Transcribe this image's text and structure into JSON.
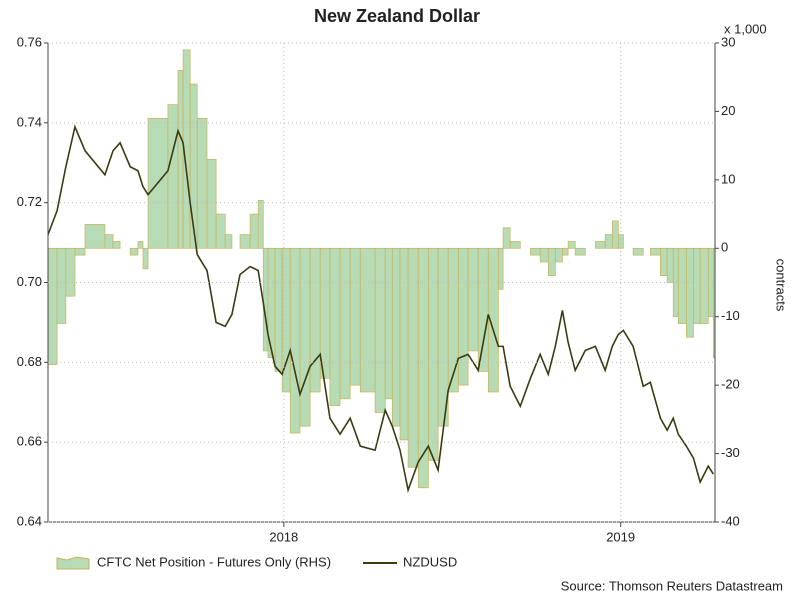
{
  "chart_data": {
    "type": "line",
    "title": "New Zealand Dollar",
    "y2_unit": "x 1,000",
    "y2_label": "contracts",
    "source": "Source: Thomson Reuters Datastream",
    "x": [
      2017.3,
      2017.327,
      2017.353,
      2017.38,
      2017.41,
      2017.469,
      2017.493,
      2017.514,
      2017.544,
      2017.567,
      2017.582,
      2017.597,
      2017.656,
      2017.686,
      2017.701,
      2017.722,
      2017.743,
      2017.772,
      2017.799,
      2017.826,
      2017.846,
      2017.87,
      2017.9,
      2017.924,
      2017.939,
      2017.953,
      2017.974,
      2017.995,
      2018.019,
      2018.048,
      2018.078,
      2018.108,
      2018.137,
      2018.167,
      2018.197,
      2018.227,
      2018.271,
      2018.301,
      2018.322,
      2018.345,
      2018.369,
      2018.399,
      2018.429,
      2018.458,
      2018.488,
      2018.518,
      2018.547,
      2018.577,
      2018.607,
      2018.637,
      2018.651,
      2018.672,
      2018.702,
      2018.732,
      2018.761,
      2018.785,
      2018.806,
      2018.827,
      2018.844,
      2018.865,
      2018.895,
      2018.925,
      2018.954,
      2018.975,
      2018.993,
      2019.008,
      2019.037,
      2019.067,
      2019.088,
      2019.118,
      2019.138,
      2019.156,
      2019.171,
      2019.195,
      2019.216,
      2019.236,
      2019.26,
      2019.275
    ],
    "series": [
      {
        "name": "CFTC Net Position - Futures Only (RHS)",
        "type": "area",
        "axis": "y2",
        "color": "#b7dbb4",
        "edge_color": "#c9b25a",
        "values": [
          -17,
          -11,
          -7,
          -1,
          3.5,
          2,
          1,
          0,
          -1,
          1,
          -3,
          19,
          21,
          26,
          29,
          24,
          19,
          13,
          5,
          2,
          0,
          2,
          5,
          7,
          -15,
          -16,
          -18,
          -21,
          -27,
          -26,
          -21,
          -19,
          -23,
          -22,
          -20,
          -21,
          -24,
          -22,
          -26,
          -28,
          -32,
          -35,
          -31,
          -26,
          -21,
          -20,
          -15,
          -18,
          -21,
          -6,
          3,
          1,
          0,
          -1,
          -2,
          -4,
          -2,
          -1,
          1,
          -1,
          0,
          1,
          2,
          4,
          2,
          0,
          -1,
          0,
          -1,
          -4,
          -5,
          -10,
          -11,
          -13,
          -11,
          -11,
          -10,
          -16
        ]
      },
      {
        "name": "NZDUSD",
        "type": "line",
        "color": "#3b3b12",
        "values": [
          0.712,
          0.718,
          0.729,
          0.739,
          0.733,
          0.727,
          0.733,
          0.735,
          0.729,
          0.728,
          0.724,
          0.722,
          0.728,
          0.738,
          0.735,
          0.72,
          0.707,
          0.703,
          0.69,
          0.689,
          0.692,
          0.702,
          0.704,
          0.703,
          0.695,
          0.687,
          0.679,
          0.677,
          0.683,
          0.672,
          0.679,
          0.682,
          0.666,
          0.662,
          0.666,
          0.659,
          0.658,
          0.668,
          0.664,
          0.658,
          0.648,
          0.655,
          0.659,
          0.653,
          0.673,
          0.681,
          0.682,
          0.678,
          0.692,
          0.684,
          0.684,
          0.674,
          0.669,
          0.676,
          0.682,
          0.677,
          0.684,
          0.693,
          0.685,
          0.678,
          0.683,
          0.684,
          0.678,
          0.684,
          0.687,
          0.688,
          0.684,
          0.674,
          0.675,
          0.666,
          0.663,
          0.666,
          0.662,
          0.659,
          0.656,
          0.65,
          0.654,
          0.652
        ]
      }
    ],
    "xlim": [
      2017.3,
      2019.28
    ],
    "xticks": [
      2018,
      2019
    ],
    "ylim": [
      0.64,
      0.76
    ],
    "yticks": [
      0.64,
      0.66,
      0.68,
      {
        "value": 0.7,
        "label": "0.70"
      },
      0.72,
      0.74,
      0.76
    ],
    "y2lim": [
      -40,
      30
    ],
    "y2ticks": [
      -40,
      -30,
      -20,
      -10,
      0,
      10,
      20,
      30
    ],
    "grid": true,
    "legend": "bottom"
  }
}
